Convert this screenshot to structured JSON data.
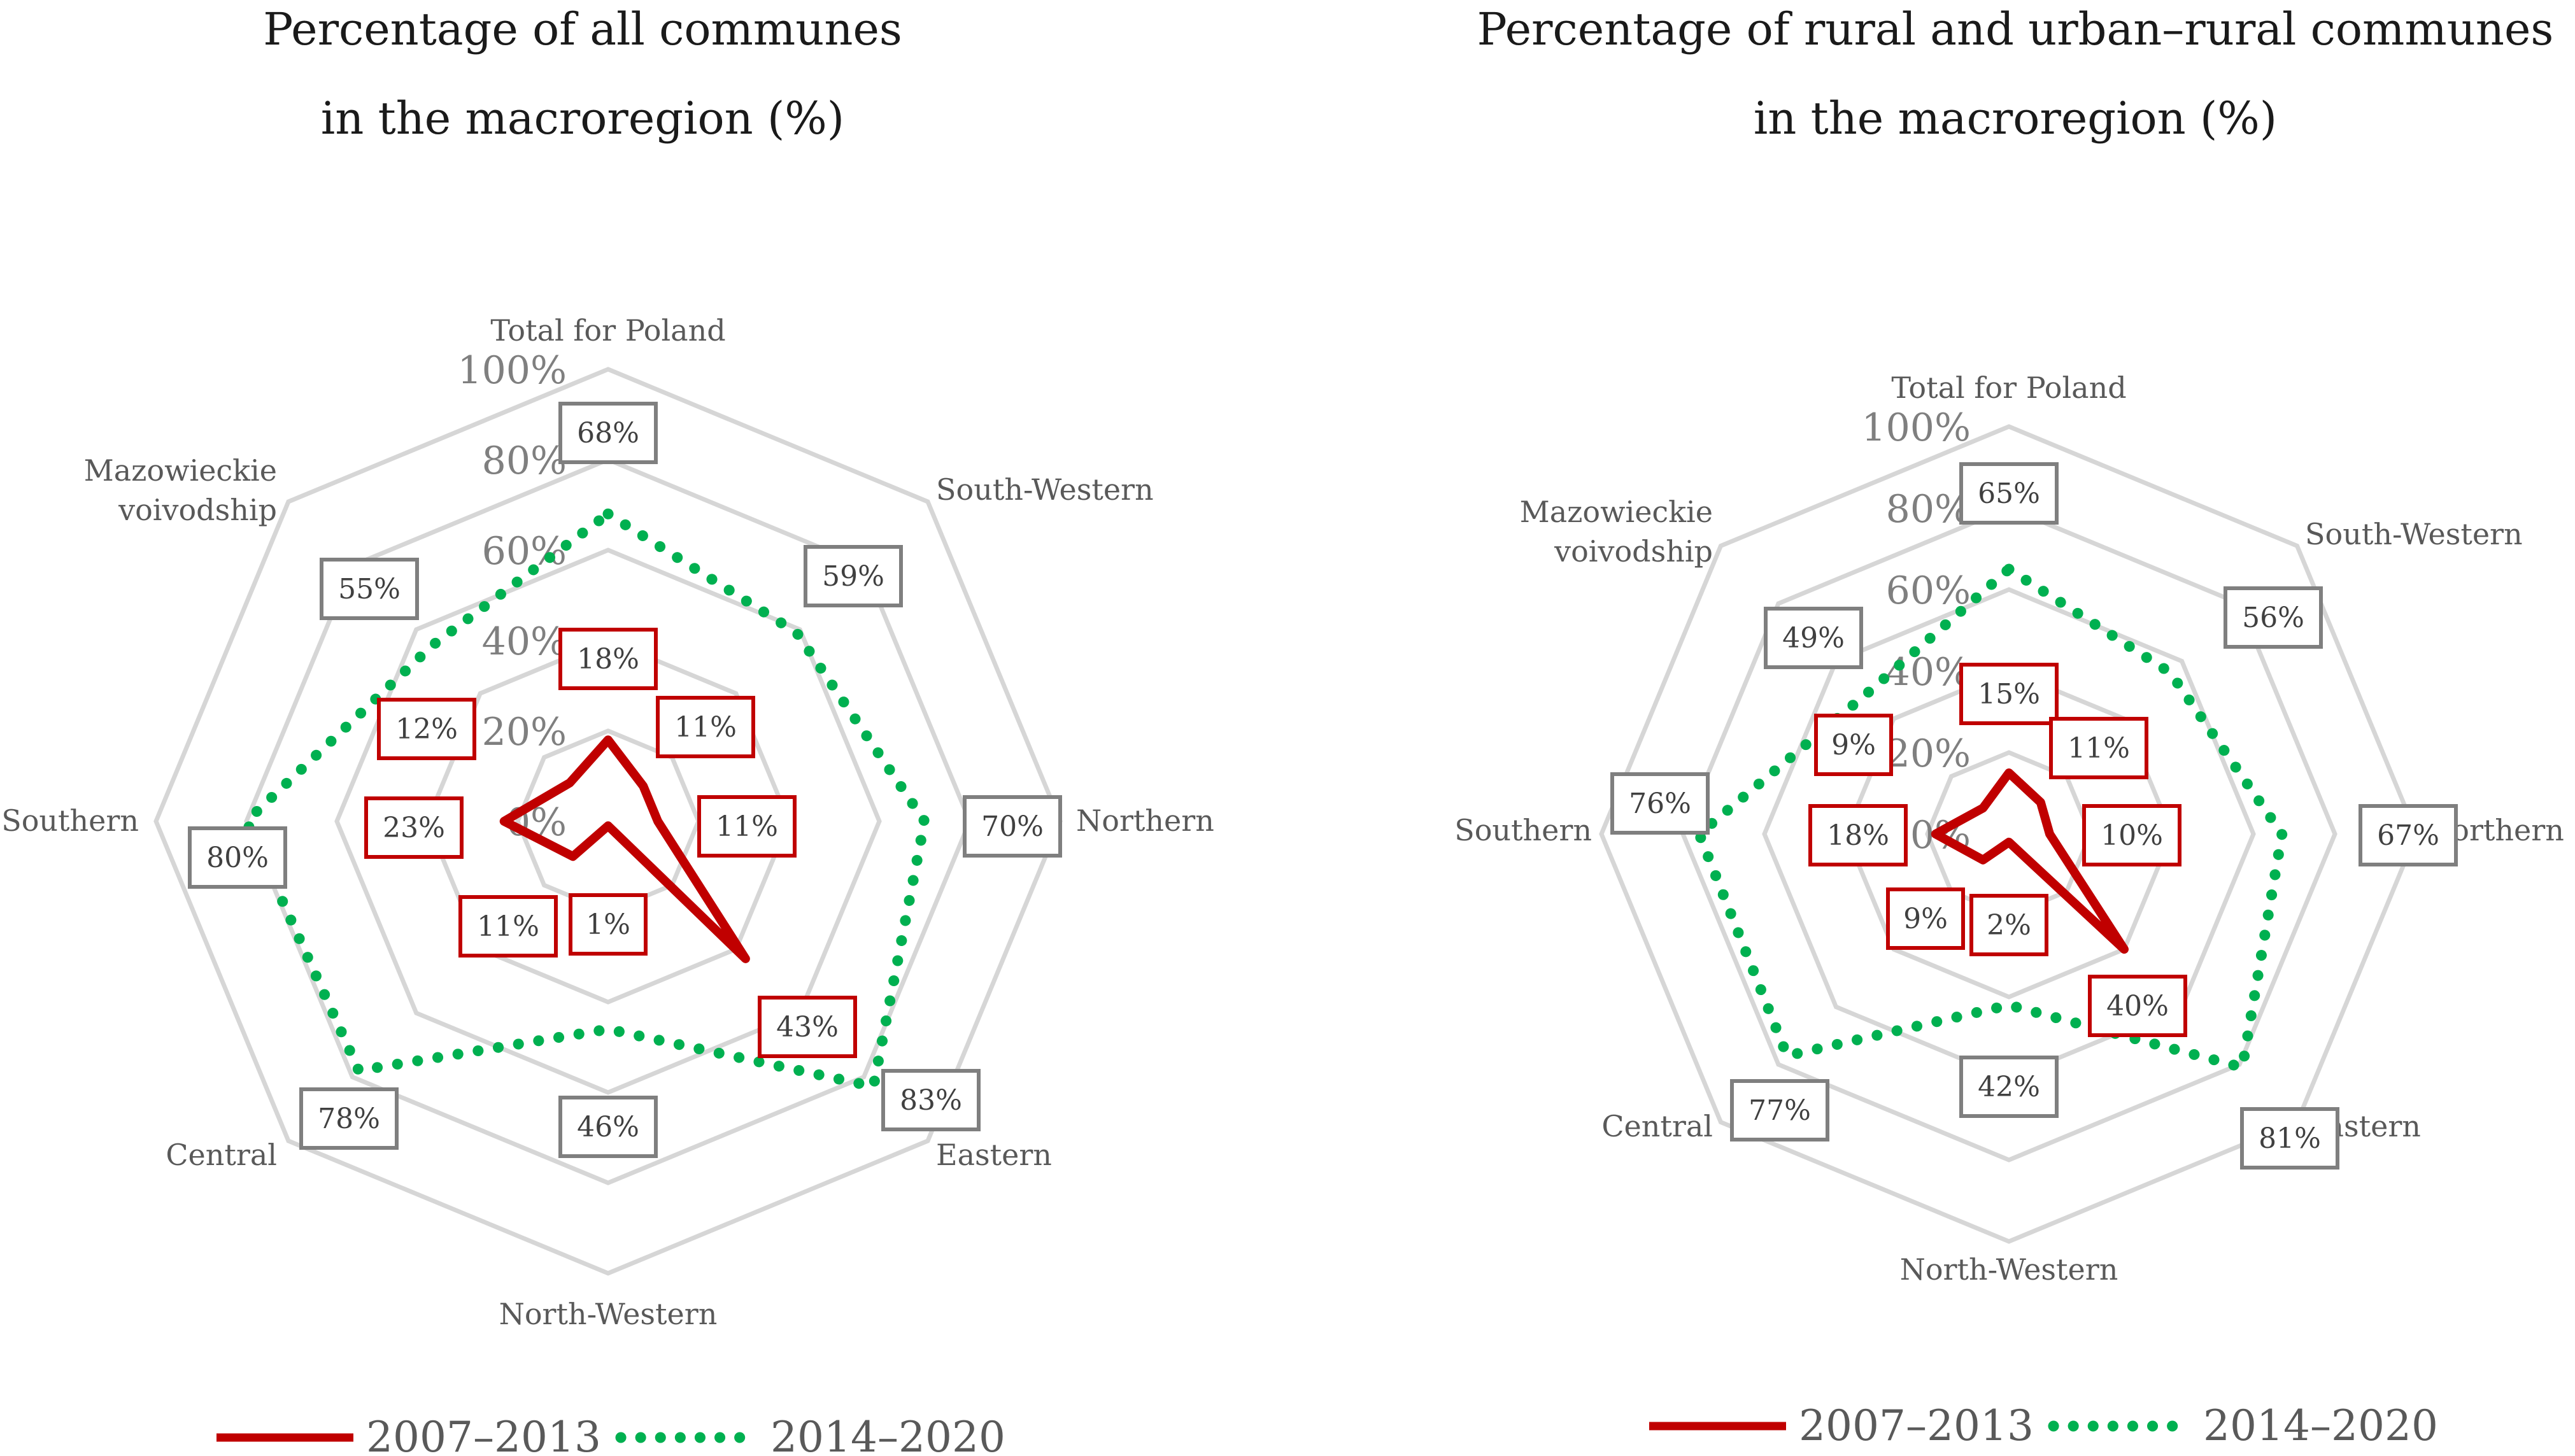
{
  "chart_data": [
    {
      "type": "radar",
      "title_line1": "Percentage of all communes",
      "title_line2": "in the macroregion (%)",
      "categories": [
        "Total for Poland",
        "South-Western",
        "Northern",
        "Eastern",
        "North-Western",
        "Central",
        "Southern",
        "Mazowieckie voivodship"
      ],
      "category_lines": [
        [
          "Total for Poland"
        ],
        [
          "South-Western"
        ],
        [
          "Northern"
        ],
        [
          "Eastern"
        ],
        [
          "North-Western"
        ],
        [
          "Central"
        ],
        [
          "Southern"
        ],
        [
          "Mazowieckie",
          "voivodship"
        ]
      ],
      "ticks": [
        "0%",
        "20%",
        "40%",
        "60%",
        "80%",
        "100%"
      ],
      "rlim": [
        0,
        100
      ],
      "series": [
        {
          "name": "2007–2013",
          "values": [
            18,
            11,
            11,
            43,
            1,
            11,
            23,
            12
          ],
          "labels": [
            "18%",
            "11%",
            "11%",
            "43%",
            "1%",
            "11%",
            "23%",
            "12%"
          ]
        },
        {
          "name": "2014–2020",
          "values": [
            68,
            59,
            70,
            83,
            46,
            78,
            80,
            55
          ],
          "labels": [
            "68%",
            "59%",
            "70%",
            "83%",
            "46%",
            "78%",
            "80%",
            "55%"
          ]
        }
      ]
    },
    {
      "type": "radar",
      "title_line1": "Percentage of rural and urban–rural communes",
      "title_line2": "in the macroregion (%)",
      "categories": [
        "Total for Poland",
        "South-Western",
        "Northern",
        "Eastern",
        "North-Western",
        "Central",
        "Southern",
        "Mazowieckie voivodship"
      ],
      "category_lines": [
        [
          "Total for Poland"
        ],
        [
          "South-Western"
        ],
        [
          "Northern"
        ],
        [
          "Eastern"
        ],
        [
          "North-Western"
        ],
        [
          "Central"
        ],
        [
          "Southern"
        ],
        [
          "Mazowieckie",
          "voivodship"
        ]
      ],
      "ticks": [
        "0%",
        "20%",
        "40%",
        "60%",
        "80%",
        "100%"
      ],
      "rlim": [
        0,
        100
      ],
      "series": [
        {
          "name": "2007–2013",
          "values": [
            15,
            11,
            10,
            40,
            2,
            9,
            18,
            9
          ],
          "labels": [
            "15%",
            "11%",
            "10%",
            "40%",
            "2%",
            "9%",
            "18%",
            "9%"
          ]
        },
        {
          "name": "2014–2020",
          "values": [
            65,
            56,
            67,
            81,
            42,
            77,
            76,
            49
          ],
          "labels": [
            "65%",
            "56%",
            "67%",
            "81%",
            "42%",
            "77%",
            "76%",
            "49%"
          ]
        }
      ]
    }
  ],
  "legend": {
    "series1": "2007–2013",
    "series2": "2014–2020"
  },
  "colors": {
    "series1": "#c00000",
    "series2": "#00b050",
    "grid": "#d6d6d6",
    "box1": "#c00000",
    "box2": "#7f7f7f"
  }
}
